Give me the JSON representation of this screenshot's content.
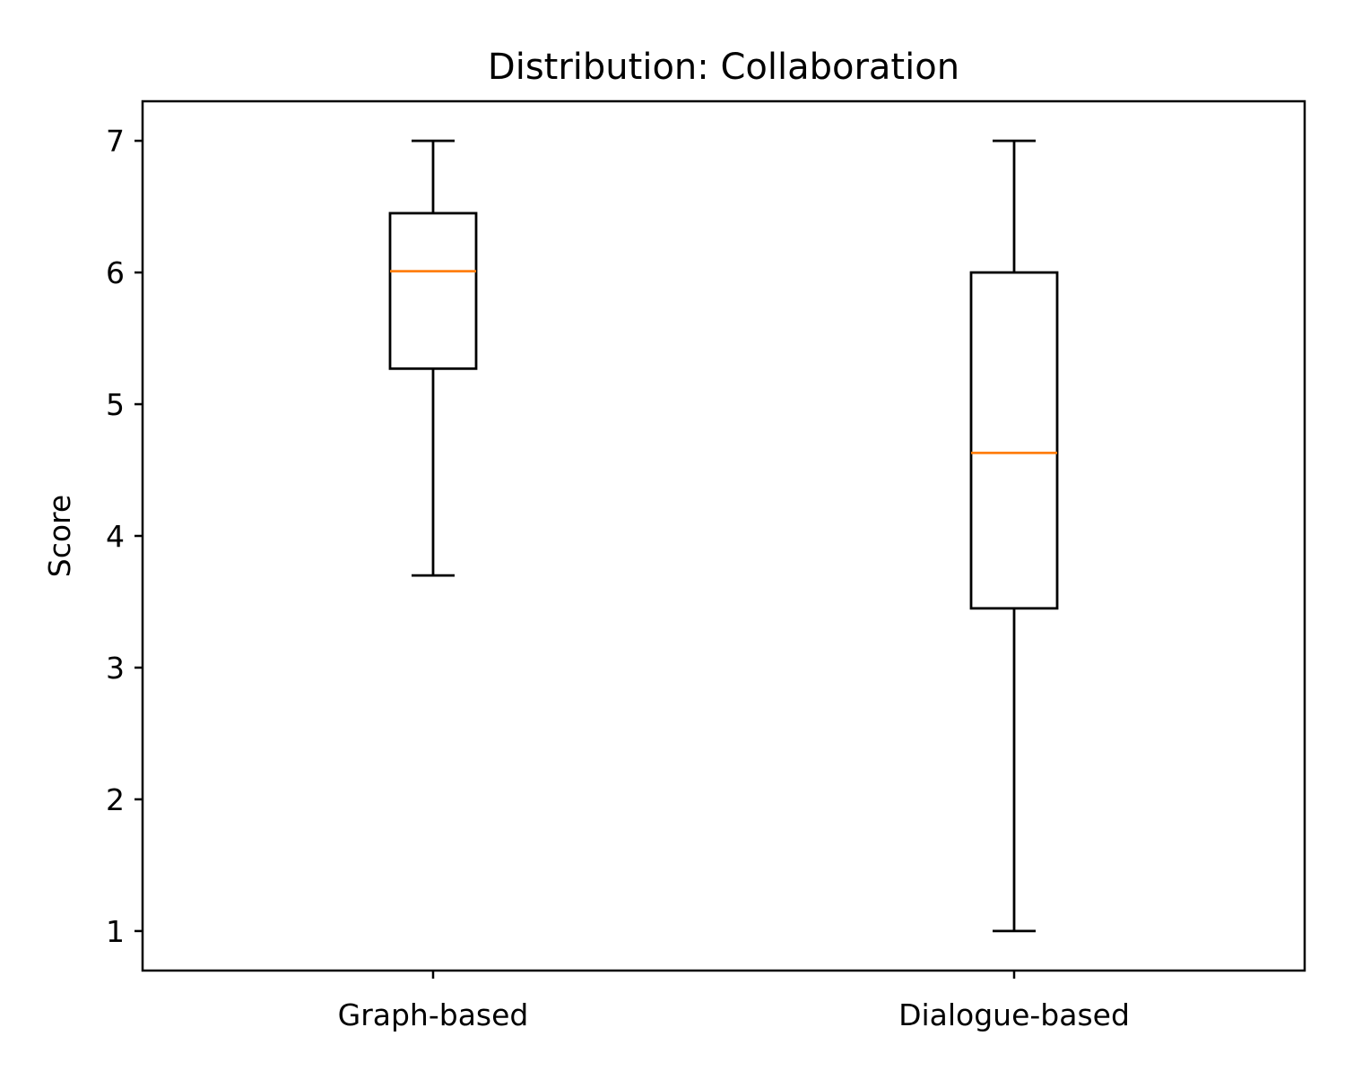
{
  "chart_data": {
    "type": "boxplot",
    "title": "Distribution: Collaboration",
    "xlabel": "",
    "ylabel": "Score",
    "ylim": [
      0.7,
      7.3
    ],
    "yticks": [
      1,
      2,
      3,
      4,
      5,
      6,
      7
    ],
    "grid": false,
    "categories": [
      "Graph-based",
      "Dialogue-based"
    ],
    "boxes": [
      {
        "category": "Graph-based",
        "whisker_low": 3.7,
        "q1": 5.27,
        "median": 6.01,
        "q3": 6.45,
        "whisker_high": 7.0
      },
      {
        "category": "Dialogue-based",
        "whisker_low": 1.0,
        "q1": 3.45,
        "median": 4.63,
        "q3": 6.0,
        "whisker_high": 7.0
      }
    ],
    "colors": {
      "box": "#000000",
      "median": "#ff7f0e",
      "axes": "#000000"
    }
  }
}
